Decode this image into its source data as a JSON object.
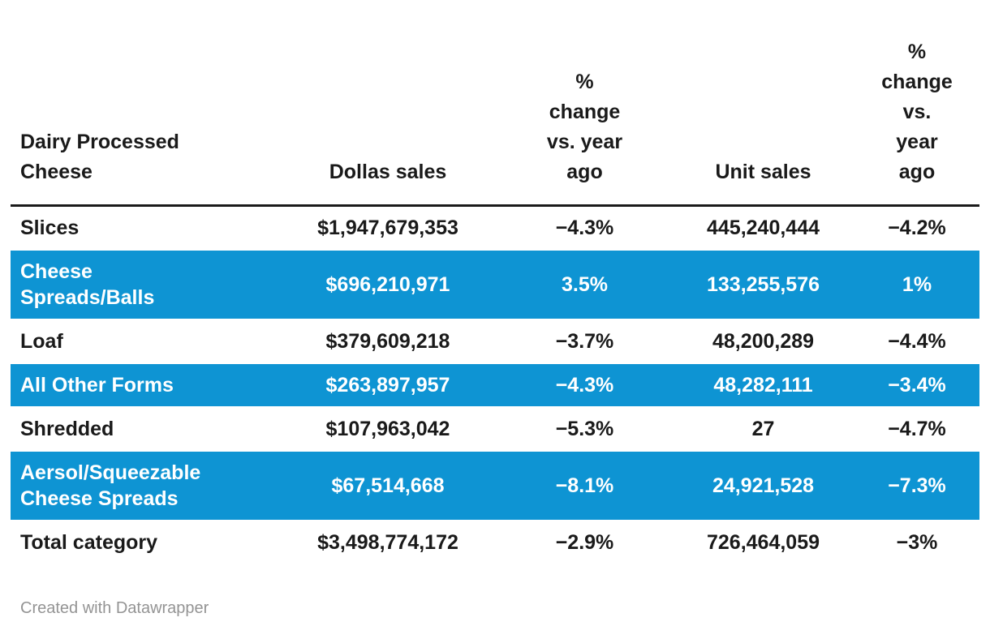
{
  "chart_data": {
    "type": "table",
    "title": "Dairy Processed Cheese",
    "highlight_color": "#0e94d3",
    "text_color": "#1a1a1a",
    "columns": [
      "Dairy Processed\nCheese",
      "Dollas sales",
      "%\nchange\nvs. year\nago",
      "Unit sales",
      "%\nchange\nvs.\nyear\nago"
    ],
    "rows": [
      {
        "category": "Slices",
        "dollar_sales": "$1,947,679,353",
        "dollar_pct_change": "−4.3%",
        "unit_sales": "445,240,444",
        "unit_pct_change": "−4.2%",
        "highlighted": false
      },
      {
        "category": "Cheese\nSpreads/Balls",
        "dollar_sales": "$696,210,971",
        "dollar_pct_change": "3.5%",
        "unit_sales": "133,255,576",
        "unit_pct_change": "1%",
        "highlighted": true
      },
      {
        "category": "Loaf",
        "dollar_sales": "$379,609,218",
        "dollar_pct_change": "−3.7%",
        "unit_sales": "48,200,289",
        "unit_pct_change": "−4.4%",
        "highlighted": false
      },
      {
        "category": "All Other Forms",
        "dollar_sales": "$263,897,957",
        "dollar_pct_change": "−4.3%",
        "unit_sales": "48,282,111",
        "unit_pct_change": "−3.4%",
        "highlighted": true
      },
      {
        "category": "Shredded",
        "dollar_sales": "$107,963,042",
        "dollar_pct_change": "−5.3%",
        "unit_sales": "27",
        "unit_pct_change": "−4.7%",
        "highlighted": false
      },
      {
        "category": "Aersol/Squeezable\nCheese Spreads",
        "dollar_sales": "$67,514,668",
        "dollar_pct_change": "−8.1%",
        "unit_sales": "24,921,528",
        "unit_pct_change": "−7.3%",
        "highlighted": true
      },
      {
        "category": "Total category",
        "dollar_sales": "$3,498,774,172",
        "dollar_pct_change": "−2.9%",
        "unit_sales": "726,464,059",
        "unit_pct_change": "−3%",
        "highlighted": false
      }
    ]
  },
  "footer": {
    "attribution": "Created with Datawrapper"
  }
}
